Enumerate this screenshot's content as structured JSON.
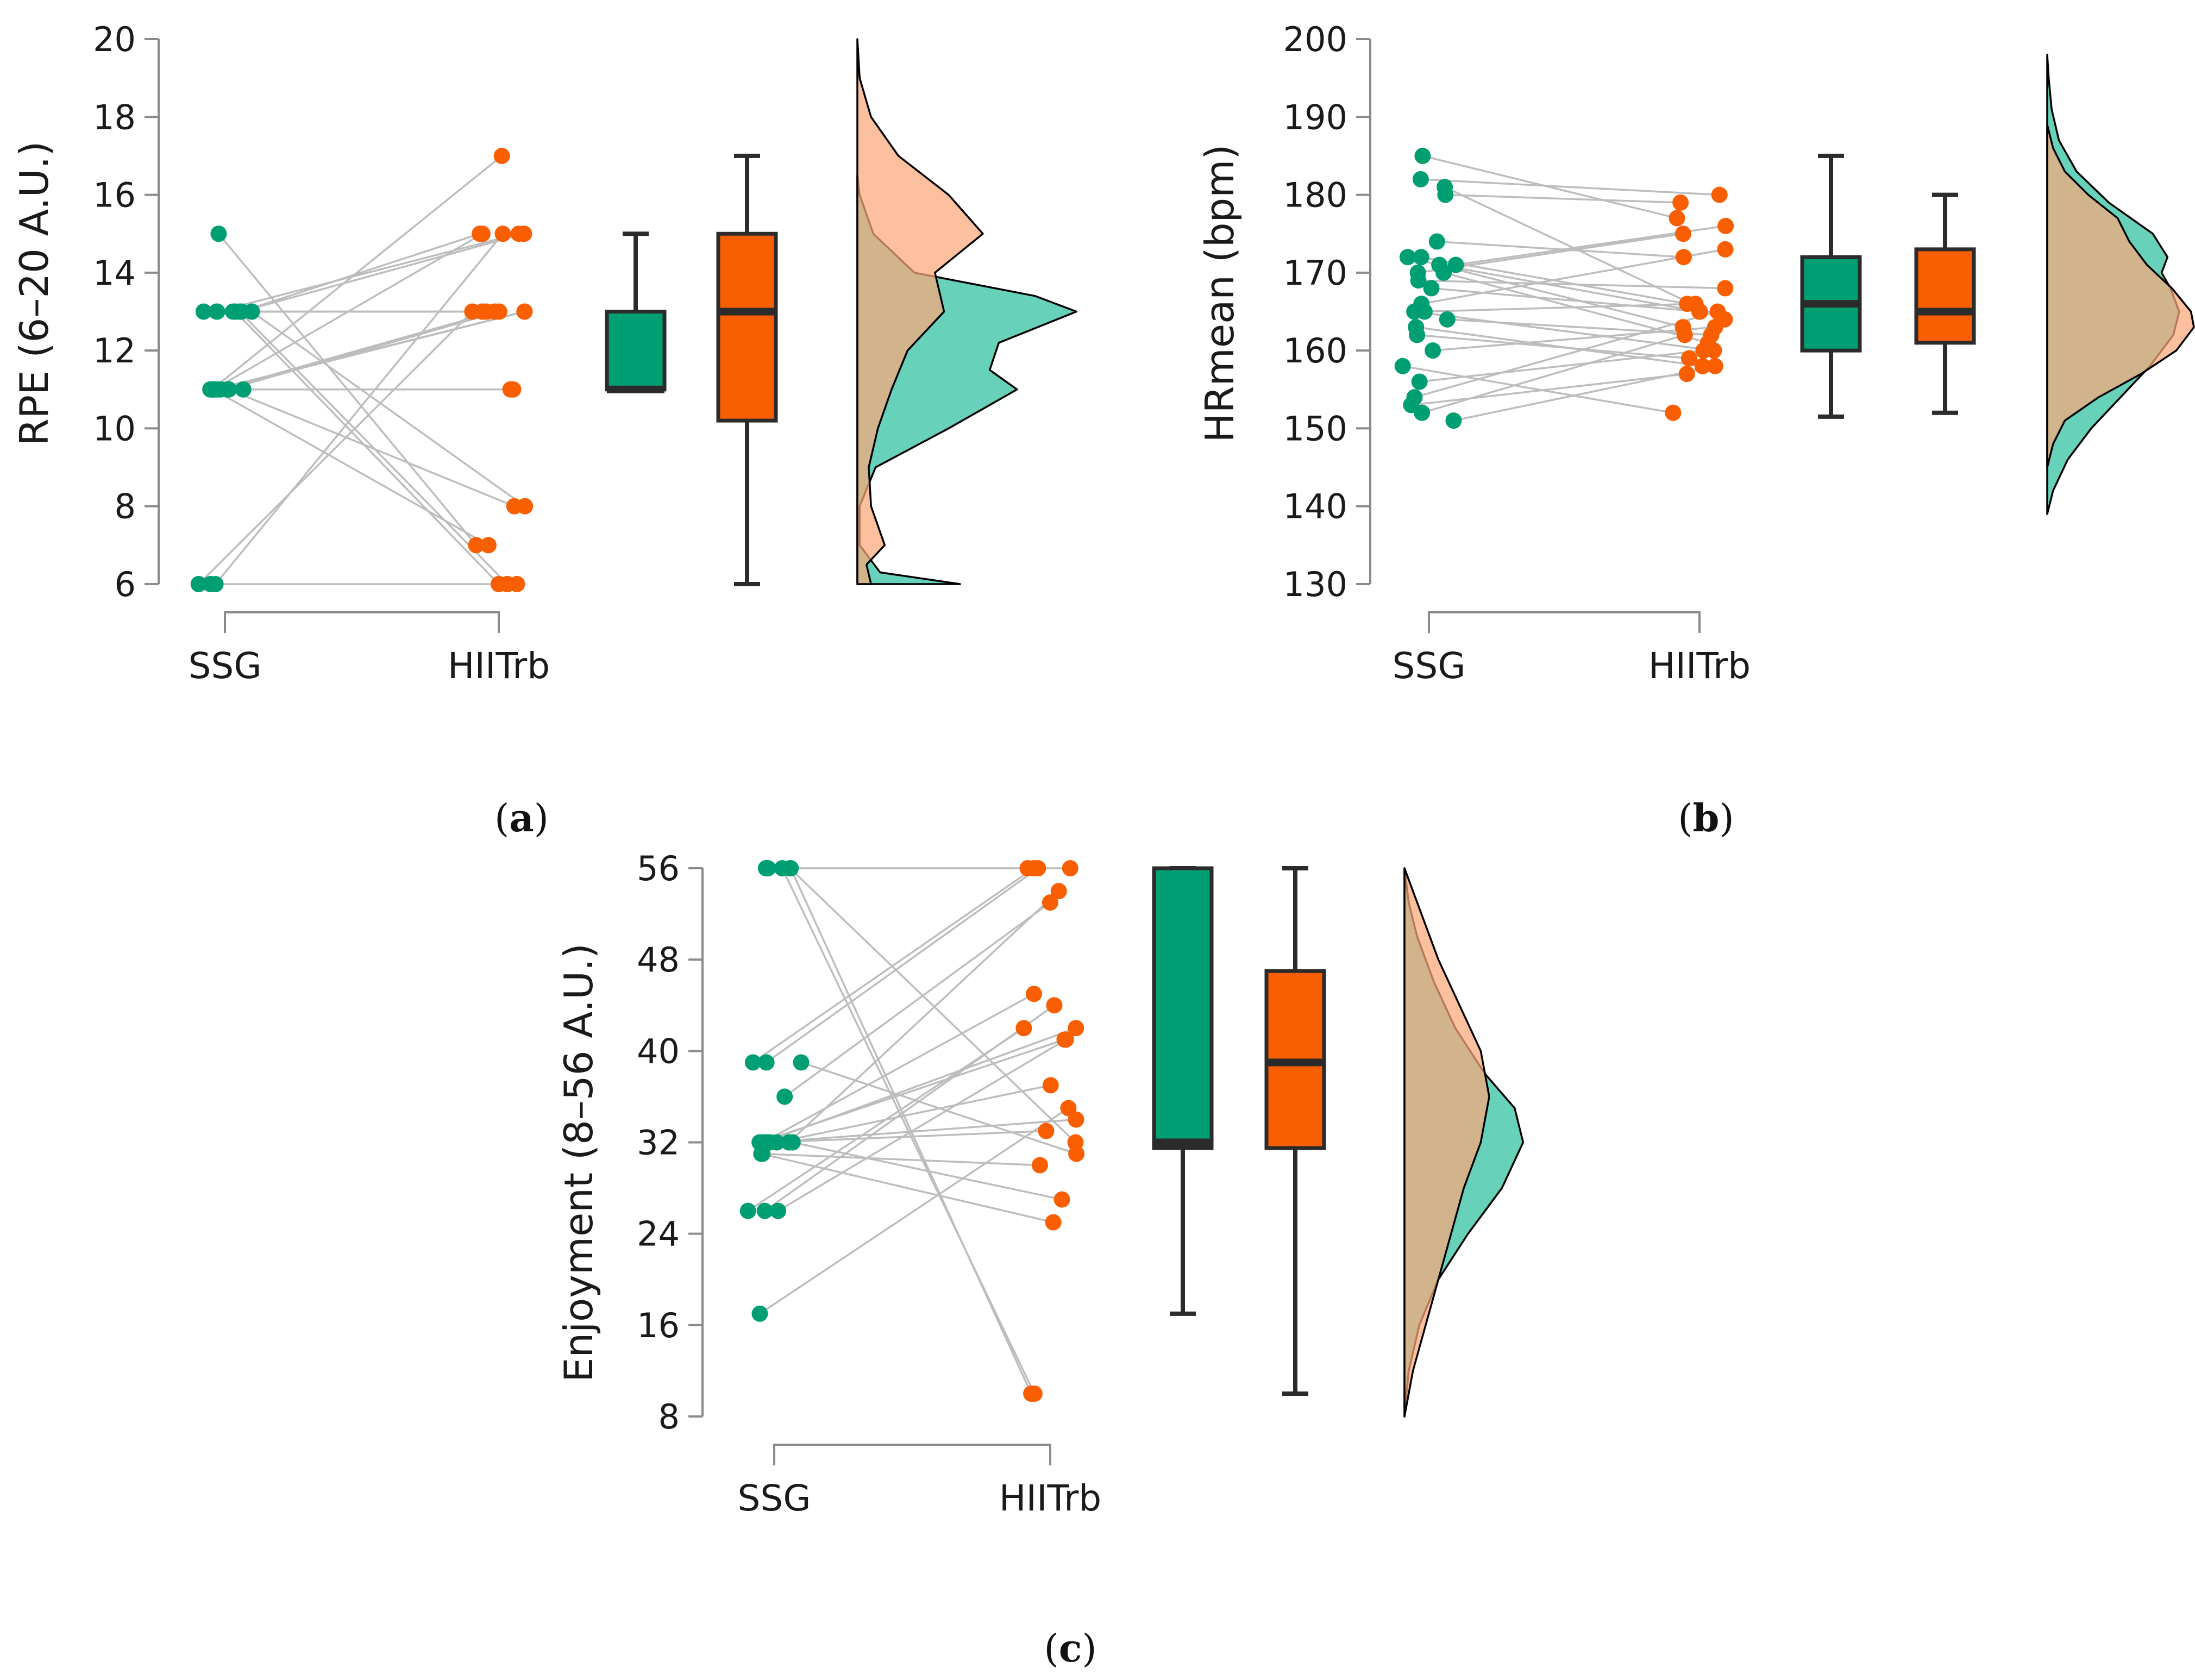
{
  "colors": {
    "ssg": "#009E73",
    "hiit": "#F95E00",
    "ssg_density": "#5FCFB5",
    "hiit_density": "#FBA87A",
    "line": "#bdbdbd",
    "axis": "#8a8a8a",
    "box_edge": "#2b2b2b"
  },
  "chart_data": [
    {
      "id": "a",
      "panel_label": "a",
      "type": "raincloud",
      "ylabel": "RPE (6–20 A.U.)",
      "ylim": [
        6,
        20
      ],
      "yticks": [
        6,
        8,
        10,
        12,
        14,
        16,
        18,
        20
      ],
      "groups": [
        "SSG",
        "HIITrb"
      ],
      "pairs": [
        [
          15,
          7
        ],
        [
          13,
          15
        ],
        [
          13,
          15
        ],
        [
          13,
          15
        ],
        [
          13,
          13
        ],
        [
          13,
          13
        ],
        [
          13,
          13
        ],
        [
          13,
          8
        ],
        [
          13,
          6
        ],
        [
          13,
          6
        ],
        [
          11,
          15
        ],
        [
          11,
          13
        ],
        [
          11,
          13
        ],
        [
          11,
          13
        ],
        [
          11,
          13
        ],
        [
          11,
          11
        ],
        [
          11,
          11
        ],
        [
          11,
          17
        ],
        [
          11,
          7
        ],
        [
          11,
          8
        ],
        [
          6,
          13
        ],
        [
          6,
          15
        ],
        [
          6,
          6
        ]
      ],
      "boxes": [
        {
          "group": "SSG",
          "min": 11,
          "q1": 11,
          "median": 11,
          "q3": 13,
          "max": 15
        },
        {
          "group": "HIITrb",
          "min": 6,
          "q1": 10.2,
          "median": 13,
          "q3": 15,
          "max": 17
        }
      ],
      "density": {
        "ssg": [
          [
            6,
            0.45
          ],
          [
            6.3,
            0.1
          ],
          [
            7,
            0.01
          ],
          [
            8,
            0.01
          ],
          [
            9,
            0.08
          ],
          [
            10,
            0.4
          ],
          [
            11,
            0.7
          ],
          [
            11.5,
            0.58
          ],
          [
            12.2,
            0.62
          ],
          [
            13,
            0.96
          ],
          [
            13.4,
            0.78
          ],
          [
            14,
            0.25
          ],
          [
            15,
            0.07
          ],
          [
            16,
            0.01
          ],
          [
            16.5,
            0.0
          ]
        ],
        "hiit": [
          [
            6,
            0.06
          ],
          [
            6.5,
            0.04
          ],
          [
            7,
            0.12
          ],
          [
            8,
            0.06
          ],
          [
            9,
            0.05
          ],
          [
            10,
            0.09
          ],
          [
            11,
            0.15
          ],
          [
            12,
            0.22
          ],
          [
            13,
            0.38
          ],
          [
            14,
            0.34
          ],
          [
            15,
            0.55
          ],
          [
            16,
            0.4
          ],
          [
            17,
            0.18
          ],
          [
            18,
            0.06
          ],
          [
            19,
            0.01
          ],
          [
            20,
            0.0
          ]
        ]
      }
    },
    {
      "id": "b",
      "panel_label": "b",
      "type": "raincloud",
      "ylabel": "HRmean (bpm)",
      "ylim": [
        130,
        200
      ],
      "yticks": [
        130,
        140,
        150,
        160,
        170,
        180,
        190,
        200
      ],
      "groups": [
        "SSG",
        "HIITrb"
      ],
      "pairs": [
        [
          185,
          177
        ],
        [
          182,
          180
        ],
        [
          181,
          164
        ],
        [
          180,
          179
        ],
        [
          174,
          172
        ],
        [
          172,
          166
        ],
        [
          172,
          163
        ],
        [
          171,
          176
        ],
        [
          171,
          165
        ],
        [
          170,
          161
        ],
        [
          170,
          175
        ],
        [
          169,
          168
        ],
        [
          168,
          165
        ],
        [
          166,
          173
        ],
        [
          165,
          166
        ],
        [
          165,
          160
        ],
        [
          164,
          162
        ],
        [
          163,
          158
        ],
        [
          162,
          159
        ],
        [
          160,
          163
        ],
        [
          158,
          152
        ],
        [
          156,
          160
        ],
        [
          154,
          165
        ],
        [
          153,
          157
        ],
        [
          152,
          162
        ],
        [
          151,
          158
        ]
      ],
      "boxes": [
        {
          "group": "SSG",
          "min": 151.5,
          "q1": 160,
          "median": 166,
          "q3": 172,
          "max": 185
        },
        {
          "group": "HIITrb",
          "min": 152,
          "q1": 161,
          "median": 165,
          "q3": 173,
          "max": 180
        }
      ],
      "density": {
        "ssg": [
          [
            139,
            0.0
          ],
          [
            142,
            0.04
          ],
          [
            146,
            0.14
          ],
          [
            150,
            0.3
          ],
          [
            154,
            0.5
          ],
          [
            158,
            0.7
          ],
          [
            162,
            0.86
          ],
          [
            165,
            0.9
          ],
          [
            168,
            0.84
          ],
          [
            170,
            0.78
          ],
          [
            172,
            0.82
          ],
          [
            175,
            0.72
          ],
          [
            179,
            0.42
          ],
          [
            183,
            0.2
          ],
          [
            187,
            0.08
          ],
          [
            191,
            0.03
          ],
          [
            195,
            0.01
          ],
          [
            198,
            0.0
          ]
        ],
        "hiit": [
          [
            145,
            0.0
          ],
          [
            148,
            0.04
          ],
          [
            151,
            0.12
          ],
          [
            154,
            0.35
          ],
          [
            157,
            0.64
          ],
          [
            160,
            0.88
          ],
          [
            163,
            1.0
          ],
          [
            165,
            0.98
          ],
          [
            168,
            0.85
          ],
          [
            171,
            0.68
          ],
          [
            174,
            0.56
          ],
          [
            177,
            0.48
          ],
          [
            180,
            0.28
          ],
          [
            183,
            0.12
          ],
          [
            186,
            0.04
          ],
          [
            189,
            0.0
          ]
        ]
      }
    },
    {
      "id": "c",
      "panel_label": "c",
      "type": "raincloud",
      "ylabel": "Enjoyment (8–56 A.U.)",
      "ylim": [
        8,
        56
      ],
      "yticks": [
        8,
        16,
        24,
        32,
        40,
        48,
        56
      ],
      "groups": [
        "SSG",
        "HIITrb"
      ],
      "pairs": [
        [
          56,
          56
        ],
        [
          56,
          56
        ],
        [
          56,
          32
        ],
        [
          56,
          10
        ],
        [
          56,
          10
        ],
        [
          39,
          56
        ],
        [
          39,
          56
        ],
        [
          39,
          31
        ],
        [
          36,
          53
        ],
        [
          32,
          54
        ],
        [
          32,
          45
        ],
        [
          32,
          42
        ],
        [
          32,
          37
        ],
        [
          32,
          34
        ],
        [
          32,
          33
        ],
        [
          32,
          41
        ],
        [
          32,
          27
        ],
        [
          31,
          25
        ],
        [
          31,
          30
        ],
        [
          26,
          41
        ],
        [
          26,
          42
        ],
        [
          26,
          44
        ],
        [
          17,
          35
        ]
      ],
      "boxes": [
        {
          "group": "SSG",
          "min": 17,
          "q1": 31.5,
          "median": 32,
          "q3": 56,
          "max": 56
        },
        {
          "group": "HIITrb",
          "min": 10,
          "q1": 31.5,
          "median": 39,
          "q3": 47,
          "max": 56
        }
      ],
      "density": {
        "ssg": [
          [
            8,
            0.0
          ],
          [
            12,
            0.02
          ],
          [
            16,
            0.07
          ],
          [
            20,
            0.16
          ],
          [
            24,
            0.3
          ],
          [
            28,
            0.46
          ],
          [
            32,
            0.56
          ],
          [
            35,
            0.52
          ],
          [
            38,
            0.38
          ],
          [
            42,
            0.24
          ],
          [
            46,
            0.14
          ],
          [
            50,
            0.06
          ],
          [
            53,
            0.02
          ],
          [
            56,
            0.0
          ]
        ],
        "hiit": [
          [
            8,
            0.0
          ],
          [
            12,
            0.04
          ],
          [
            16,
            0.1
          ],
          [
            20,
            0.16
          ],
          [
            24,
            0.22
          ],
          [
            28,
            0.28
          ],
          [
            32,
            0.36
          ],
          [
            36,
            0.4
          ],
          [
            40,
            0.36
          ],
          [
            44,
            0.26
          ],
          [
            48,
            0.16
          ],
          [
            52,
            0.08
          ],
          [
            55,
            0.02
          ],
          [
            56,
            0.0
          ]
        ]
      }
    }
  ]
}
